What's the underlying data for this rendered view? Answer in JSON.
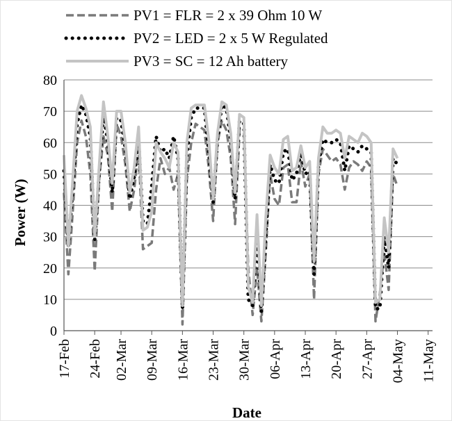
{
  "chart_data": {
    "type": "line",
    "title": "",
    "xlabel": "Date",
    "ylabel": "Power (W)",
    "ylim": [
      0,
      80
    ],
    "yticks": [
      0,
      10,
      20,
      30,
      40,
      50,
      60,
      70,
      80
    ],
    "xlim": [
      "17-Feb",
      "12-May"
    ],
    "xtick_labels": [
      "17-Feb",
      "24-Feb",
      "02-Mar",
      "09-Mar",
      "16-Mar",
      "23-Mar",
      "30-Mar",
      "06-Apr",
      "13-Apr",
      "20-Apr",
      "27-Apr",
      "04-May",
      "11-May"
    ],
    "grid": "horizontal",
    "legend_position": "top",
    "series": [
      {
        "name": "PV1 = FLR = 2 x 39 Ohm 10 W",
        "style": "dashed",
        "color": "#7a7a7a",
        "points": [
          [
            "17-Feb",
            44
          ],
          [
            "18-Feb",
            18
          ],
          [
            "19-Feb",
            38
          ],
          [
            "20-Feb",
            60
          ],
          [
            "21-Feb",
            67
          ],
          [
            "22-Feb",
            62
          ],
          [
            "23-Feb",
            50
          ],
          [
            "24-Feb",
            19
          ],
          [
            "25-Feb",
            48
          ],
          [
            "26-Feb",
            62
          ],
          [
            "27-Feb",
            56
          ],
          [
            "28-Feb",
            38
          ],
          [
            "01-Mar",
            66
          ],
          [
            "02-Mar",
            62
          ],
          [
            "03-Mar",
            53
          ],
          [
            "04-Mar",
            38
          ],
          [
            "05-Mar",
            45
          ],
          [
            "06-Mar",
            58
          ],
          [
            "07-Mar",
            26
          ],
          [
            "08-Mar",
            27
          ],
          [
            "09-Mar",
            28
          ],
          [
            "10-Mar",
            45
          ],
          [
            "11-Mar",
            55
          ],
          [
            "12-Mar",
            50
          ],
          [
            "13-Mar",
            52
          ],
          [
            "14-Mar",
            45
          ],
          [
            "15-Mar",
            50
          ],
          [
            "16-Mar",
            2
          ],
          [
            "17-Mar",
            48
          ],
          [
            "18-Mar",
            60
          ],
          [
            "19-Mar",
            66
          ],
          [
            "20-Mar",
            65
          ],
          [
            "21-Mar",
            64
          ],
          [
            "22-Mar",
            52
          ],
          [
            "23-Mar",
            35
          ],
          [
            "24-Mar",
            60
          ],
          [
            "25-Mar",
            67
          ],
          [
            "26-Mar",
            64
          ],
          [
            "27-Mar",
            55
          ],
          [
            "28-Mar",
            34
          ],
          [
            "29-Mar",
            64
          ],
          [
            "30-Mar",
            63
          ],
          [
            "31-Mar",
            20
          ],
          [
            "01-Apr",
            5
          ],
          [
            "02-Apr",
            20
          ],
          [
            "03-Apr",
            3
          ],
          [
            "04-Apr",
            25
          ],
          [
            "05-Apr",
            50
          ],
          [
            "06-Apr",
            42
          ],
          [
            "07-Apr",
            40
          ],
          [
            "08-Apr",
            52
          ],
          [
            "09-Apr",
            53
          ],
          [
            "10-Apr",
            41
          ],
          [
            "11-Apr",
            41
          ],
          [
            "12-Apr",
            54
          ],
          [
            "13-Apr",
            46
          ],
          [
            "14-Apr",
            50
          ],
          [
            "15-Apr",
            10
          ],
          [
            "16-Apr",
            50
          ],
          [
            "17-Apr",
            58
          ],
          [
            "18-Apr",
            56
          ],
          [
            "19-Apr",
            54
          ],
          [
            "20-Apr",
            55
          ],
          [
            "21-Apr",
            53
          ],
          [
            "22-Apr",
            45
          ],
          [
            "23-Apr",
            52
          ],
          [
            "24-Apr",
            54
          ],
          [
            "25-Apr",
            53
          ],
          [
            "26-Apr",
            51
          ],
          [
            "27-Apr",
            54
          ],
          [
            "28-Apr",
            52
          ],
          [
            "29-Apr",
            3
          ],
          [
            "30-Apr",
            12
          ],
          [
            "01-May",
            25
          ],
          [
            "02-May",
            13
          ],
          [
            "03-May",
            50
          ],
          [
            "04-May",
            46
          ]
        ]
      },
      {
        "name": "PV2 = LED = 2 x 5 W Regulated",
        "style": "dotted",
        "color": "#000000",
        "points": [
          [
            "17-Feb",
            51
          ],
          [
            "18-Feb",
            27
          ],
          [
            "19-Feb",
            45
          ],
          [
            "20-Feb",
            66
          ],
          [
            "21-Feb",
            72
          ],
          [
            "22-Feb",
            69
          ],
          [
            "23-Feb",
            62
          ],
          [
            "24-Feb",
            29
          ],
          [
            "25-Feb",
            50
          ],
          [
            "26-Feb",
            69
          ],
          [
            "27-Feb",
            60
          ],
          [
            "28-Feb",
            44
          ],
          [
            "01-Mar",
            68
          ],
          [
            "02-Mar",
            67
          ],
          [
            "03-Mar",
            58
          ],
          [
            "04-Mar",
            42
          ],
          [
            "05-Mar",
            49
          ],
          [
            "06-Mar",
            61
          ],
          [
            "07-Mar",
            35
          ],
          [
            "08-Mar",
            34
          ],
          [
            "09-Mar",
            46
          ],
          [
            "10-Mar",
            62
          ],
          [
            "11-Mar",
            57
          ],
          [
            "12-Mar",
            58
          ],
          [
            "13-Mar",
            55
          ],
          [
            "14-Mar",
            62
          ],
          [
            "15-Mar",
            55
          ],
          [
            "16-Mar",
            7
          ],
          [
            "17-Mar",
            56
          ],
          [
            "18-Mar",
            68
          ],
          [
            "19-Mar",
            71
          ],
          [
            "20-Mar",
            71
          ],
          [
            "21-Mar",
            71
          ],
          [
            "22-Mar",
            57
          ],
          [
            "23-Mar",
            41
          ],
          [
            "24-Mar",
            61
          ],
          [
            "25-Mar",
            72
          ],
          [
            "26-Mar",
            71
          ],
          [
            "27-Mar",
            61
          ],
          [
            "28-Mar",
            42
          ],
          [
            "29-Mar",
            67
          ],
          [
            "30-Mar",
            66
          ],
          [
            "31-Mar",
            10
          ],
          [
            "01-Apr",
            8
          ],
          [
            "02-Apr",
            30
          ],
          [
            "03-Apr",
            6
          ],
          [
            "04-Apr",
            30
          ],
          [
            "05-Apr",
            53
          ],
          [
            "06-Apr",
            48
          ],
          [
            "07-Apr",
            47
          ],
          [
            "08-Apr",
            57
          ],
          [
            "09-Apr",
            58
          ],
          [
            "10-Apr",
            48
          ],
          [
            "11-Apr",
            50
          ],
          [
            "12-Apr",
            57
          ],
          [
            "13-Apr",
            50
          ],
          [
            "14-Apr",
            51
          ],
          [
            "15-Apr",
            18
          ],
          [
            "16-Apr",
            53
          ],
          [
            "17-Apr",
            61
          ],
          [
            "18-Apr",
            60
          ],
          [
            "19-Apr",
            60
          ],
          [
            "20-Apr",
            61
          ],
          [
            "21-Apr",
            60
          ],
          [
            "22-Apr",
            51
          ],
          [
            "23-Apr",
            59
          ],
          [
            "24-Apr",
            58
          ],
          [
            "25-Apr",
            57
          ],
          [
            "26-Apr",
            59
          ],
          [
            "27-Apr",
            58
          ],
          [
            "28-Apr",
            57
          ],
          [
            "29-Apr",
            7
          ],
          [
            "30-Apr",
            7
          ],
          [
            "01-May",
            30
          ],
          [
            "02-May",
            20
          ],
          [
            "03-May",
            55
          ],
          [
            "04-May",
            53
          ]
        ]
      },
      {
        "name": "PV3 = SC = 12 Ah battery",
        "style": "solid",
        "color": "#c4c4c4",
        "points": [
          [
            "17-Feb",
            56
          ],
          [
            "18-Feb",
            27
          ],
          [
            "19-Feb",
            48
          ],
          [
            "20-Feb",
            70
          ],
          [
            "21-Feb",
            75
          ],
          [
            "22-Feb",
            71
          ],
          [
            "23-Feb",
            65
          ],
          [
            "24-Feb",
            30
          ],
          [
            "25-Feb",
            52
          ],
          [
            "26-Feb",
            73
          ],
          [
            "27-Feb",
            62
          ],
          [
            "28-Feb",
            47
          ],
          [
            "01-Mar",
            70
          ],
          [
            "02-Mar",
            70
          ],
          [
            "03-Mar",
            60
          ],
          [
            "04-Mar",
            44
          ],
          [
            "05-Mar",
            52
          ],
          [
            "06-Mar",
            65
          ],
          [
            "07-Mar",
            32
          ],
          [
            "08-Mar",
            33
          ],
          [
            "09-Mar",
            38
          ],
          [
            "10-Mar",
            60
          ],
          [
            "11-Mar",
            57
          ],
          [
            "12-Mar",
            55
          ],
          [
            "13-Mar",
            52
          ],
          [
            "14-Mar",
            60
          ],
          [
            "15-Mar",
            57
          ],
          [
            "16-Mar",
            8
          ],
          [
            "17-Mar",
            60
          ],
          [
            "18-Mar",
            71
          ],
          [
            "19-Mar",
            72
          ],
          [
            "20-Mar",
            72
          ],
          [
            "21-Mar",
            72
          ],
          [
            "22-Mar",
            61
          ],
          [
            "23-Mar",
            42
          ],
          [
            "24-Mar",
            63
          ],
          [
            "25-Mar",
            73
          ],
          [
            "26-Mar",
            72
          ],
          [
            "27-Mar",
            63
          ],
          [
            "28-Mar",
            44
          ],
          [
            "29-Mar",
            69
          ],
          [
            "30-Mar",
            68
          ],
          [
            "31-Mar",
            14
          ],
          [
            "01-Apr",
            9
          ],
          [
            "02-Apr",
            37
          ],
          [
            "03-Apr",
            8
          ],
          [
            "04-Apr",
            36
          ],
          [
            "05-Apr",
            56
          ],
          [
            "06-Apr",
            52
          ],
          [
            "07-Apr",
            50
          ],
          [
            "08-Apr",
            61
          ],
          [
            "09-Apr",
            62
          ],
          [
            "10-Apr",
            51
          ],
          [
            "11-Apr",
            52
          ],
          [
            "12-Apr",
            59
          ],
          [
            "13-Apr",
            52
          ],
          [
            "14-Apr",
            54
          ],
          [
            "15-Apr",
            22
          ],
          [
            "16-Apr",
            55
          ],
          [
            "17-Apr",
            65
          ],
          [
            "18-Apr",
            63
          ],
          [
            "19-Apr",
            63
          ],
          [
            "20-Apr",
            64
          ],
          [
            "21-Apr",
            63
          ],
          [
            "22-Apr",
            55
          ],
          [
            "23-Apr",
            62
          ],
          [
            "24-Apr",
            61
          ],
          [
            "25-Apr",
            60
          ],
          [
            "26-Apr",
            63
          ],
          [
            "27-Apr",
            62
          ],
          [
            "28-Apr",
            60
          ],
          [
            "29-Apr",
            9
          ],
          [
            "30-Apr",
            10
          ],
          [
            "01-May",
            36
          ],
          [
            "02-May",
            25
          ],
          [
            "03-May",
            58
          ],
          [
            "04-May",
            55
          ]
        ]
      }
    ]
  }
}
